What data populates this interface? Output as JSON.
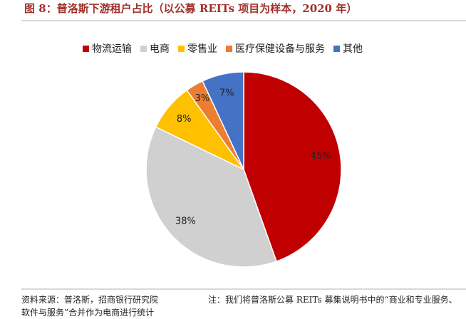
{
  "chart_data": {
    "type": "pie",
    "title": "图 8：普洛斯下游租户占比（以公募 REITs 项目为样本，2020 年）",
    "categories": [
      "物流运输",
      "电商",
      "零售业",
      "医疗保健设备与服务",
      "其他"
    ],
    "values": [
      45,
      38,
      8,
      3,
      7
    ],
    "value_labels": [
      "45%",
      "38%",
      "8%",
      "3%",
      "7%"
    ],
    "colors": [
      "#c00000",
      "#d0d0d0",
      "#ffc000",
      "#ed7d31",
      "#4472c4"
    ],
    "legend": "top",
    "source": "资料来源：普洛斯，招商银行研究院",
    "note": "注：我们将普洛斯公募 REITs 募集说明书中的“商业和专业服务、软件与服务”合并作为电商进行统计"
  }
}
